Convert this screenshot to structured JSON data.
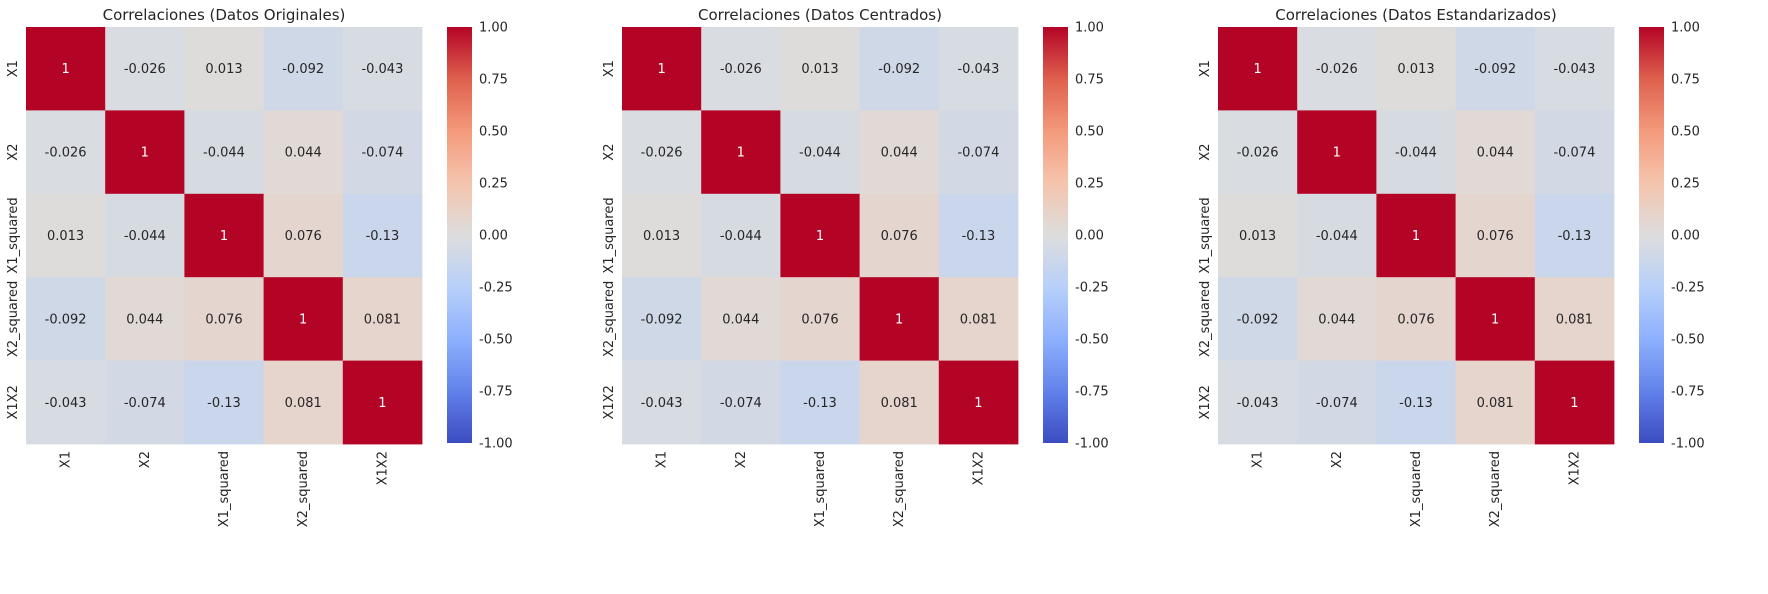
{
  "chart_data": [
    {
      "type": "heatmap",
      "title": "Correlaciones (Datos Originales)",
      "xlabel": "",
      "ylabel": "",
      "categories": [
        "X1",
        "X2",
        "X1_squared",
        "X2_squared",
        "X1X2"
      ],
      "matrix": [
        [
          1,
          -0.026,
          0.013,
          -0.092,
          -0.043
        ],
        [
          -0.026,
          1,
          -0.044,
          0.044,
          -0.074
        ],
        [
          0.013,
          -0.044,
          1,
          0.076,
          -0.13
        ],
        [
          -0.092,
          0.044,
          0.076,
          1,
          0.081
        ],
        [
          -0.043,
          -0.074,
          -0.13,
          0.081,
          1
        ]
      ],
      "labels": [
        [
          "1",
          "-0.026",
          "0.013",
          "-0.092",
          "-0.043"
        ],
        [
          "-0.026",
          "1",
          "-0.044",
          "0.044",
          "-0.074"
        ],
        [
          "0.013",
          "-0.044",
          "1",
          "0.076",
          "-0.13"
        ],
        [
          "-0.092",
          "0.044",
          "0.076",
          "1",
          "0.081"
        ],
        [
          "-0.043",
          "-0.074",
          "-0.13",
          "0.081",
          "1"
        ]
      ],
      "colormap": "coolwarm",
      "vlim": [
        -1,
        1
      ],
      "colorbar_ticks": [
        "1.00",
        "0.75",
        "0.50",
        "0.25",
        "0.00",
        "-0.25",
        "-0.50",
        "-0.75",
        "-1.00"
      ]
    },
    {
      "type": "heatmap",
      "title": "Correlaciones (Datos Centrados)",
      "xlabel": "",
      "ylabel": "",
      "categories": [
        "X1",
        "X2",
        "X1_squared",
        "X2_squared",
        "X1X2"
      ],
      "matrix": [
        [
          1,
          -0.026,
          0.013,
          -0.092,
          -0.043
        ],
        [
          -0.026,
          1,
          -0.044,
          0.044,
          -0.074
        ],
        [
          0.013,
          -0.044,
          1,
          0.076,
          -0.13
        ],
        [
          -0.092,
          0.044,
          0.076,
          1,
          0.081
        ],
        [
          -0.043,
          -0.074,
          -0.13,
          0.081,
          1
        ]
      ],
      "labels": [
        [
          "1",
          "-0.026",
          "0.013",
          "-0.092",
          "-0.043"
        ],
        [
          "-0.026",
          "1",
          "-0.044",
          "0.044",
          "-0.074"
        ],
        [
          "0.013",
          "-0.044",
          "1",
          "0.076",
          "-0.13"
        ],
        [
          "-0.092",
          "0.044",
          "0.076",
          "1",
          "0.081"
        ],
        [
          "-0.043",
          "-0.074",
          "-0.13",
          "0.081",
          "1"
        ]
      ],
      "colormap": "coolwarm",
      "vlim": [
        -1,
        1
      ],
      "colorbar_ticks": [
        "1.00",
        "0.75",
        "0.50",
        "0.25",
        "0.00",
        "-0.25",
        "-0.50",
        "-0.75",
        "-1.00"
      ]
    },
    {
      "type": "heatmap",
      "title": "Correlaciones (Datos Estandarizados)",
      "xlabel": "",
      "ylabel": "",
      "categories": [
        "X1",
        "X2",
        "X1_squared",
        "X2_squared",
        "X1X2"
      ],
      "matrix": [
        [
          1,
          -0.026,
          0.013,
          -0.092,
          -0.043
        ],
        [
          -0.026,
          1,
          -0.044,
          0.044,
          -0.074
        ],
        [
          0.013,
          -0.044,
          1,
          0.076,
          -0.13
        ],
        [
          -0.092,
          0.044,
          0.076,
          1,
          0.081
        ],
        [
          -0.043,
          -0.074,
          -0.13,
          0.081,
          1
        ]
      ],
      "labels": [
        [
          "1",
          "-0.026",
          "0.013",
          "-0.092",
          "-0.043"
        ],
        [
          "-0.026",
          "1",
          "-0.044",
          "0.044",
          "-0.074"
        ],
        [
          "0.013",
          "-0.044",
          "1",
          "0.076",
          "-0.13"
        ],
        [
          "-0.092",
          "0.044",
          "0.076",
          "1",
          "0.081"
        ],
        [
          "-0.043",
          "-0.074",
          "-0.13",
          "0.081",
          "1"
        ]
      ],
      "colormap": "coolwarm",
      "vlim": [
        -1,
        1
      ],
      "colorbar_ticks": [
        "1.00",
        "0.75",
        "0.50",
        "0.25",
        "0.00",
        "-0.25",
        "-0.50",
        "-0.75",
        "-1.00"
      ]
    }
  ]
}
